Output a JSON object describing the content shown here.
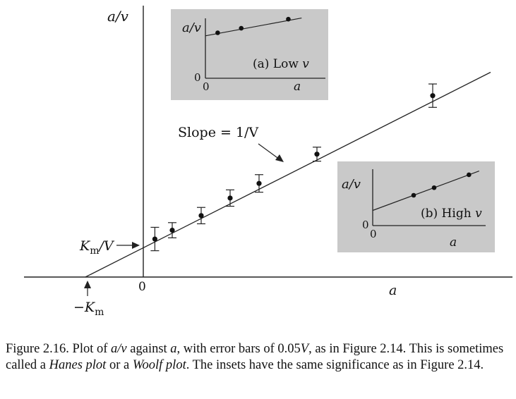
{
  "chart_data": [
    {
      "type": "scatter",
      "role": "main",
      "ylabel": "a/v",
      "xlabel": "a",
      "origin_label": "0",
      "xlim": [
        -1.0,
        6.65
      ],
      "ylim": [
        0,
        3.5
      ],
      "points": [
        {
          "x": 0.2,
          "y": 0.65,
          "err": 0.2
        },
        {
          "x": 0.5,
          "y": 0.8,
          "err": 0.13
        },
        {
          "x": 1.0,
          "y": 1.05,
          "err": 0.14
        },
        {
          "x": 1.5,
          "y": 1.35,
          "err": 0.14
        },
        {
          "x": 2.0,
          "y": 1.6,
          "err": 0.15
        },
        {
          "x": 3.0,
          "y": 2.1,
          "err": 0.12
        },
        {
          "x": 5.0,
          "y": 3.1,
          "err": 0.2
        }
      ],
      "fit_line": {
        "x_from": -1.0,
        "x_to": 6.0,
        "intercept": 0.5,
        "slope": 0.5
      },
      "annotations": {
        "slope_label": "Slope = 1/V",
        "km_v_label": "Km/V",
        "neg_km_label": "−Km"
      }
    },
    {
      "type": "line",
      "role": "inset",
      "title": "(a) Low v",
      "ylabel": "a/v",
      "xlabel": "a",
      "origin_x_label": "0",
      "origin_y_label": "0",
      "xlim": [
        0,
        5
      ],
      "ylim": [
        0,
        5
      ],
      "points": [
        {
          "x": 0.6,
          "y": 3.0
        },
        {
          "x": 1.75,
          "y": 3.3
        },
        {
          "x": 4.05,
          "y": 3.9
        }
      ],
      "fit_line": {
        "x_from": 0,
        "x_to": 4.7,
        "intercept": 2.8,
        "slope": 0.25
      }
    },
    {
      "type": "line",
      "role": "inset",
      "title": "(b) High v",
      "ylabel": "a/v",
      "xlabel": "a",
      "origin_x_label": "0",
      "origin_y_label": "0",
      "xlim": [
        0,
        5
      ],
      "ylim": [
        0,
        5
      ],
      "points": [
        {
          "x": 2.0,
          "y": 2.0
        },
        {
          "x": 3.0,
          "y": 2.5
        },
        {
          "x": 4.7,
          "y": 3.35
        }
      ],
      "fit_line": {
        "x_from": 0,
        "x_to": 5.2,
        "intercept": 1.0,
        "slope": 0.5
      }
    }
  ],
  "caption": {
    "part1": "Figure 2.16. Plot of ",
    "part2": "a/v",
    "part3": " against ",
    "part4": "a",
    "part5": ", with error bars of 0.05",
    "part6": "V",
    "part7": ", as in Figure 2.14. This is sometimes called a ",
    "part8": "Hanes plot",
    "part9": " or a ",
    "part10": "Woolf plot",
    "part11": ". The insets have the same significance as in Figure 2.14."
  }
}
